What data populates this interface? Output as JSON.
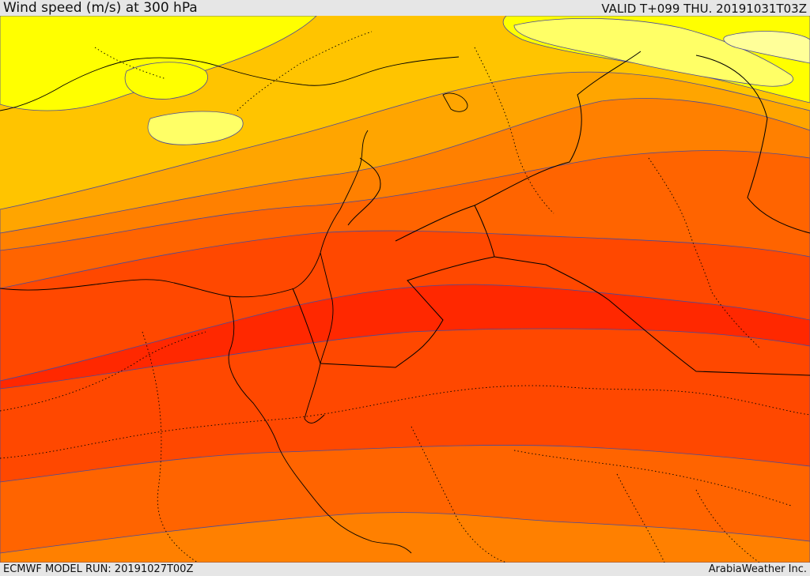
{
  "header": {
    "title": "Wind speed (m/s) at 300 hPa",
    "valid": "VALID T+099 THU. 20191031T03Z"
  },
  "footer": {
    "model_run": "ECMWF MODEL RUN: 20191027T00Z",
    "credit": "ArabiaWeather Inc."
  },
  "palette": {
    "band_colors": [
      "#ffff00",
      "#ffc400",
      "#ffa500",
      "#ff8000",
      "#ff6400",
      "#ff4800",
      "#ff2800"
    ],
    "contour_color": "#4a4a9a",
    "border_color": "#000000"
  },
  "map": {
    "field": "wind speed",
    "level": "300 hPa",
    "jet_core_color": "#ff2800"
  }
}
